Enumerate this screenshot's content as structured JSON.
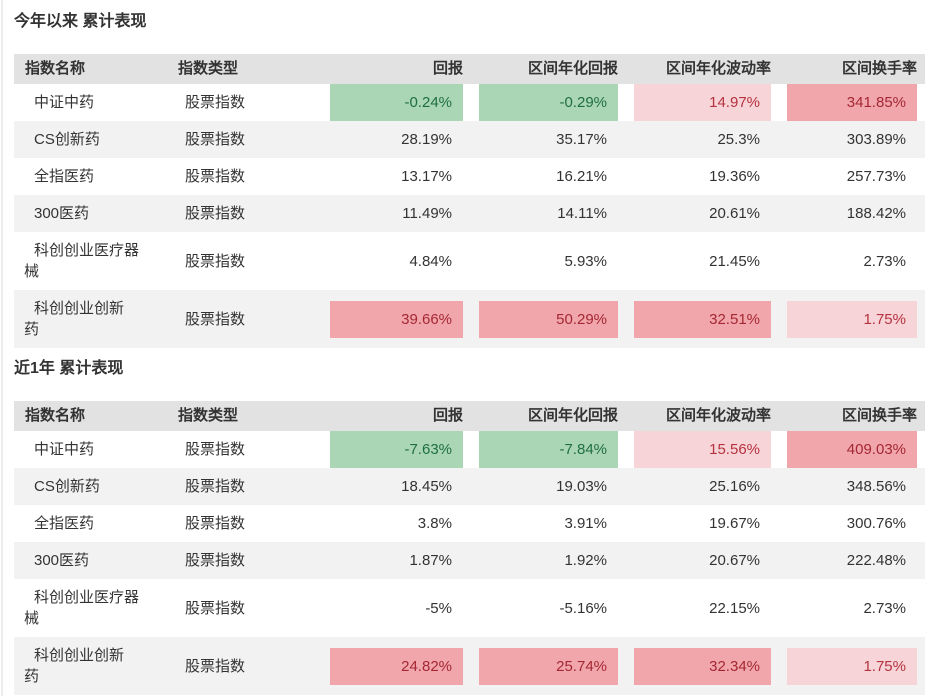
{
  "colors": {
    "header_bg": "#e2e2e2",
    "row_alt_bg": "#f2f2f2",
    "green_bg": "#aad6b6",
    "green_text": "#1f6e43",
    "pink_bg": "#f1a6ab",
    "pink_text": "#a42834",
    "pink_light_bg": "#f7d4d8",
    "pink_light_text": "#b5323f"
  },
  "tables": [
    {
      "title": "今年以来 累计表现",
      "columns": [
        "指数名称",
        "指数类型",
        "回报",
        "区间年化回报",
        "区间年化波动率",
        "区间换手率"
      ],
      "rows": [
        {
          "name": "中证中药",
          "type": "股票指数",
          "values": [
            "-0.24%",
            "-0.29%",
            "14.97%",
            "341.85%"
          ],
          "highlights": [
            "green",
            "green",
            "pink-light",
            "pink"
          ]
        },
        {
          "name": "CS创新药",
          "type": "股票指数",
          "values": [
            "28.19%",
            "35.17%",
            "25.3%",
            "303.89%"
          ],
          "highlights": [
            null,
            null,
            null,
            null
          ]
        },
        {
          "name": "全指医药",
          "type": "股票指数",
          "values": [
            "13.17%",
            "16.21%",
            "19.36%",
            "257.73%"
          ],
          "highlights": [
            null,
            null,
            null,
            null
          ]
        },
        {
          "name": "300医药",
          "type": "股票指数",
          "values": [
            "11.49%",
            "14.11%",
            "20.61%",
            "188.42%"
          ],
          "highlights": [
            null,
            null,
            null,
            null
          ]
        },
        {
          "name": "科创创业医疗器\n械",
          "type": "股票指数",
          "values": [
            "4.84%",
            "5.93%",
            "21.45%",
            "2.73%"
          ],
          "highlights": [
            null,
            null,
            null,
            null
          ]
        },
        {
          "name": "科创创业创新\n药",
          "type": "股票指数",
          "values": [
            "39.66%",
            "50.29%",
            "32.51%",
            "1.75%"
          ],
          "highlights": [
            "pink",
            "pink",
            "pink",
            "pink-light"
          ]
        }
      ]
    },
    {
      "title": "近1年 累计表现",
      "columns": [
        "指数名称",
        "指数类型",
        "回报",
        "区间年化回报",
        "区间年化波动率",
        "区间换手率"
      ],
      "rows": [
        {
          "name": "中证中药",
          "type": "股票指数",
          "values": [
            "-7.63%",
            "-7.84%",
            "15.56%",
            "409.03%"
          ],
          "highlights": [
            "green",
            "green",
            "pink-light",
            "pink"
          ]
        },
        {
          "name": "CS创新药",
          "type": "股票指数",
          "values": [
            "18.45%",
            "19.03%",
            "25.16%",
            "348.56%"
          ],
          "highlights": [
            null,
            null,
            null,
            null
          ]
        },
        {
          "name": "全指医药",
          "type": "股票指数",
          "values": [
            "3.8%",
            "3.91%",
            "19.67%",
            "300.76%"
          ],
          "highlights": [
            null,
            null,
            null,
            null
          ]
        },
        {
          "name": "300医药",
          "type": "股票指数",
          "values": [
            "1.87%",
            "1.92%",
            "20.67%",
            "222.48%"
          ],
          "highlights": [
            null,
            null,
            null,
            null
          ]
        },
        {
          "name": "科创创业医疗器\n械",
          "type": "股票指数",
          "values": [
            "-5%",
            "-5.16%",
            "22.15%",
            "2.73%"
          ],
          "highlights": [
            null,
            null,
            null,
            null
          ]
        },
        {
          "name": "科创创业创新\n药",
          "type": "股票指数",
          "values": [
            "24.82%",
            "25.74%",
            "32.34%",
            "1.75%"
          ],
          "highlights": [
            "pink",
            "pink",
            "pink",
            "pink-light"
          ]
        }
      ]
    }
  ]
}
